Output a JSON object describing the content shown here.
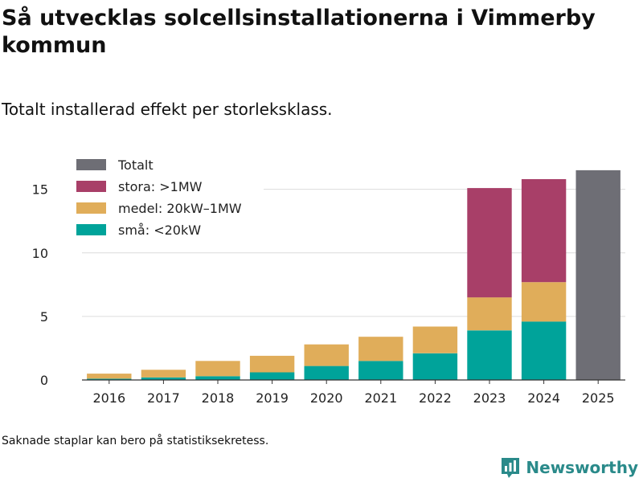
{
  "header": {
    "title": "Så utvecklas solcellsinstallationerna i Vimmerby kommun",
    "subtitle": "Totalt installerad effekt per storleksklass."
  },
  "footer": {
    "note": "Saknade staplar kan bero på statistiksekretess.",
    "brand": "Newsworthy"
  },
  "chart_data": {
    "type": "bar",
    "stacked": true,
    "title": "Så utvecklas solcellsinstallationerna i Vimmerby kommun",
    "subtitle": "Totalt installerad effekt per storleksklass.",
    "xlabel": "",
    "ylabel": "",
    "ylim": [
      0,
      17
    ],
    "yticks": [
      0,
      5,
      10,
      15
    ],
    "grid": true,
    "legend_position": "top-left",
    "categories": [
      "2016",
      "2017",
      "2018",
      "2019",
      "2020",
      "2021",
      "2022",
      "2023",
      "2024",
      "2025"
    ],
    "series": [
      {
        "name": "små: <20kW",
        "color": "#00a39a",
        "values": [
          0.1,
          0.2,
          0.3,
          0.6,
          1.1,
          1.5,
          2.1,
          3.9,
          4.6,
          null
        ]
      },
      {
        "name": "medel: 20kW–1MW",
        "color": "#e0ad5a",
        "values": [
          0.4,
          0.6,
          1.2,
          1.3,
          1.7,
          1.9,
          2.1,
          2.6,
          3.1,
          null
        ]
      },
      {
        "name": "stora: >1MW",
        "color": "#a83f68",
        "values": [
          null,
          null,
          null,
          null,
          null,
          null,
          null,
          8.6,
          8.1,
          null
        ]
      },
      {
        "name": "Totalt",
        "color": "#6e6e75",
        "values": [
          null,
          null,
          null,
          null,
          null,
          null,
          null,
          null,
          null,
          16.5
        ]
      }
    ],
    "legend_order": [
      "Totalt",
      "stora: >1MW",
      "medel: 20kW–1MW",
      "små: <20kW"
    ]
  }
}
